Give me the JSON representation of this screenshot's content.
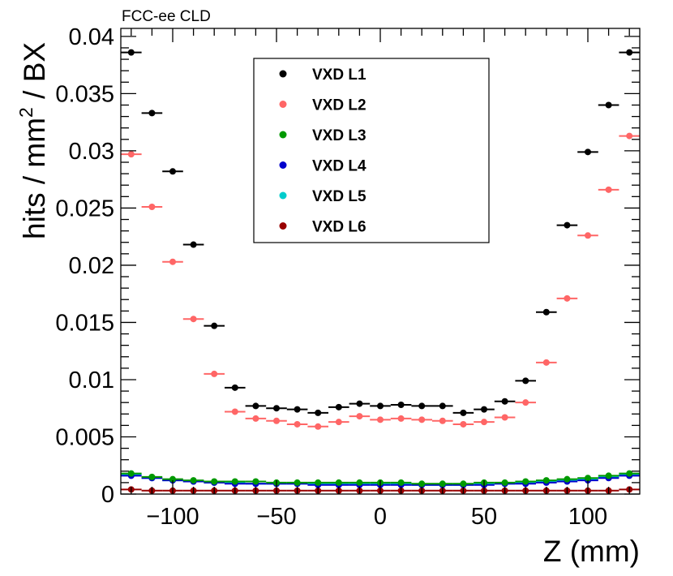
{
  "chart_data": {
    "type": "scatter",
    "corner_label": "FCC-ee CLD",
    "xlabel": "Z (mm)",
    "ylabel": {
      "pre": "hits / mm",
      "sup": "2",
      "post": " / BX"
    },
    "xlim": [
      -125,
      125
    ],
    "ylim": [
      0,
      0.0407
    ],
    "xticks": [
      -100,
      -50,
      0,
      50,
      100
    ],
    "xtick_labels": [
      "−100",
      "−50",
      "0",
      "50",
      "100"
    ],
    "yticks": [
      0,
      0.005,
      0.01,
      0.015,
      0.02,
      0.025,
      0.03,
      0.035,
      0.04
    ],
    "ytick_labels": [
      "0",
      "0.005",
      "0.01",
      "0.015",
      "0.02",
      "0.025",
      "0.03",
      "0.035",
      "0.04"
    ],
    "bin_width": 10,
    "x": [
      -120,
      -110,
      -100,
      -90,
      -80,
      -70,
      -60,
      -50,
      -40,
      -30,
      -20,
      -10,
      0,
      10,
      20,
      30,
      40,
      50,
      60,
      70,
      80,
      90,
      100,
      110,
      120
    ],
    "legend_position": "top-center",
    "series": [
      {
        "name": "VXD L1",
        "color": "#000000",
        "values": [
          0.0386,
          0.0333,
          0.0282,
          0.0218,
          0.0147,
          0.0093,
          0.0077,
          0.0075,
          0.0074,
          0.0071,
          0.0076,
          0.0079,
          0.0077,
          0.0078,
          0.0077,
          0.0077,
          0.0071,
          0.0074,
          0.0081,
          0.0099,
          0.0159,
          0.0235,
          0.0299,
          0.034,
          0.0386
        ]
      },
      {
        "name": "VXD L2",
        "color": "#ff6666",
        "values": [
          0.0297,
          0.0251,
          0.0203,
          0.0153,
          0.0105,
          0.0072,
          0.0066,
          0.0064,
          0.0061,
          0.0059,
          0.0063,
          0.0068,
          0.0065,
          0.0066,
          0.0065,
          0.0064,
          0.0061,
          0.0063,
          0.0067,
          0.008,
          0.0115,
          0.0171,
          0.0226,
          0.0266,
          0.0313
        ]
      },
      {
        "name": "VXD L3",
        "color": "#009900",
        "values": [
          0.0018,
          0.0015,
          0.0013,
          0.0012,
          0.0011,
          0.0011,
          0.0011,
          0.001,
          0.001,
          0.001,
          0.001,
          0.001,
          0.001,
          0.001,
          0.0009,
          0.0009,
          0.0009,
          0.001,
          0.001,
          0.0011,
          0.0012,
          0.0013,
          0.0014,
          0.0016,
          0.0018
        ]
      },
      {
        "name": "VXD L4",
        "color": "#0000cc",
        "values": [
          0.0016,
          0.0014,
          0.0012,
          0.0011,
          0.001,
          0.0009,
          0.0009,
          0.0009,
          0.0009,
          0.0008,
          0.0008,
          0.0008,
          0.0008,
          0.0008,
          0.0008,
          0.0008,
          0.0008,
          0.0008,
          0.0009,
          0.0009,
          0.001,
          0.0011,
          0.0012,
          0.0014,
          0.0016
        ]
      },
      {
        "name": "VXD L5",
        "color": "#00cccc",
        "values": [
          0.0017,
          0.0014,
          0.0012,
          0.0011,
          0.001,
          0.001,
          0.0009,
          0.0009,
          0.0009,
          0.0009,
          0.0009,
          0.0009,
          0.0009,
          0.0009,
          0.0008,
          0.0008,
          0.0008,
          0.0009,
          0.0009,
          0.001,
          0.0011,
          0.0012,
          0.0013,
          0.0015,
          0.0017
        ]
      },
      {
        "name": "VXD L6",
        "color": "#990000",
        "values": [
          0.0004,
          0.0003,
          0.0003,
          0.0003,
          0.0003,
          0.0003,
          0.0003,
          0.0003,
          0.0003,
          0.0003,
          0.0003,
          0.0003,
          0.0003,
          0.0003,
          0.0003,
          0.0003,
          0.0003,
          0.0003,
          0.0003,
          0.0003,
          0.0003,
          0.0003,
          0.0003,
          0.0003,
          0.0004
        ]
      }
    ]
  }
}
